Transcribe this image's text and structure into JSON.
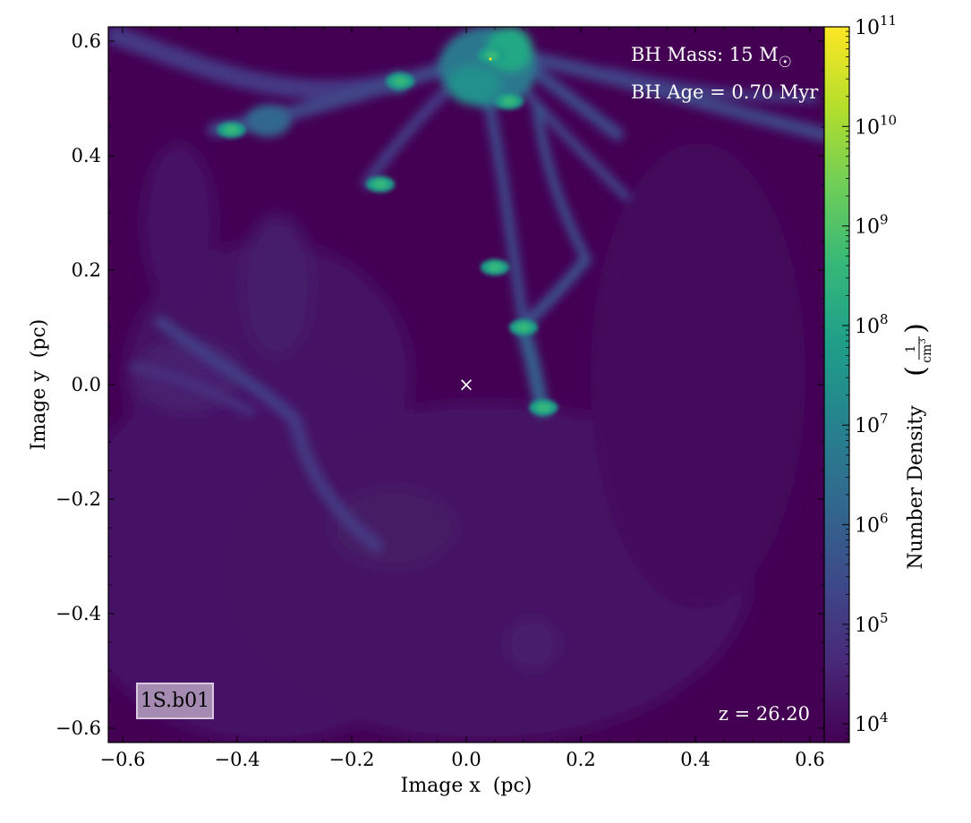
{
  "chart_data": {
    "type": "heatmap",
    "title": "",
    "xlabel": "Image x  (pc)",
    "ylabel": "Image y  (pc)",
    "xlim": [
      -0.625,
      0.625
    ],
    "ylim": [
      -0.625,
      0.625
    ],
    "x_ticks": [
      -0.6,
      -0.4,
      -0.2,
      0.0,
      0.2,
      0.4,
      0.6
    ],
    "x_tick_labels": [
      "−0.6",
      "−0.4",
      "−0.2",
      "0.0",
      "0.2",
      "0.4",
      "0.6"
    ],
    "y_ticks": [
      0.6,
      0.4,
      0.2,
      0.0,
      -0.2,
      -0.4,
      -0.6
    ],
    "y_tick_labels": [
      "0.6",
      "0.4",
      "0.2",
      "0.0",
      "−0.2",
      "−0.4",
      "−0.6"
    ],
    "colormap": "viridis",
    "colorbar": {
      "label": "Number Density",
      "unit_numerator": "1",
      "unit_denominator": "cm",
      "unit_power": "3",
      "scale": "log",
      "range": [
        6500,
        100000000000
      ],
      "ticks": [
        {
          "value": 10000,
          "base": "10",
          "exp": "4"
        },
        {
          "value": 100000,
          "base": "10",
          "exp": "5"
        },
        {
          "value": 1000000,
          "base": "10",
          "exp": "6"
        },
        {
          "value": 10000000,
          "base": "10",
          "exp": "7"
        },
        {
          "value": 100000000,
          "base": "10",
          "exp": "8"
        },
        {
          "value": 1000000000,
          "base": "10",
          "exp": "9"
        },
        {
          "value": 10000000000,
          "base": "10",
          "exp": "10"
        },
        {
          "value": 100000000000,
          "base": "10",
          "exp": "11"
        }
      ]
    },
    "marker": {
      "x": 0.0,
      "y": 0.0,
      "symbol": "×",
      "color": "#ffffff"
    },
    "dense_clumps": [
      {
        "x": -0.41,
        "y": 0.445
      },
      {
        "x": -0.15,
        "y": 0.35
      },
      {
        "x": 0.05,
        "y": 0.205
      },
      {
        "x": 0.1,
        "y": 0.1
      },
      {
        "x": 0.135,
        "y": -0.04
      },
      {
        "x": -0.115,
        "y": 0.53
      },
      {
        "x": 0.075,
        "y": 0.495
      },
      {
        "x": 0.045,
        "y": 0.575
      }
    ]
  },
  "annotations": {
    "bh_mass_label": "BH Mass: 15 M",
    "bh_mass_symbol": "☉",
    "bh_age": "BH Age = 0.70 Myr",
    "redshift": "z = 26.20",
    "run_label": "1S.b01"
  },
  "colors": {
    "background_low": "#440154",
    "viridis": [
      "#440154",
      "#482878",
      "#3e4989",
      "#31688e",
      "#26828e",
      "#1f9e89",
      "#35b779",
      "#6ece58",
      "#b5de2b",
      "#fde725"
    ],
    "label_box_fill": "#a58ab2",
    "label_box_border": "#d8c8e0"
  }
}
